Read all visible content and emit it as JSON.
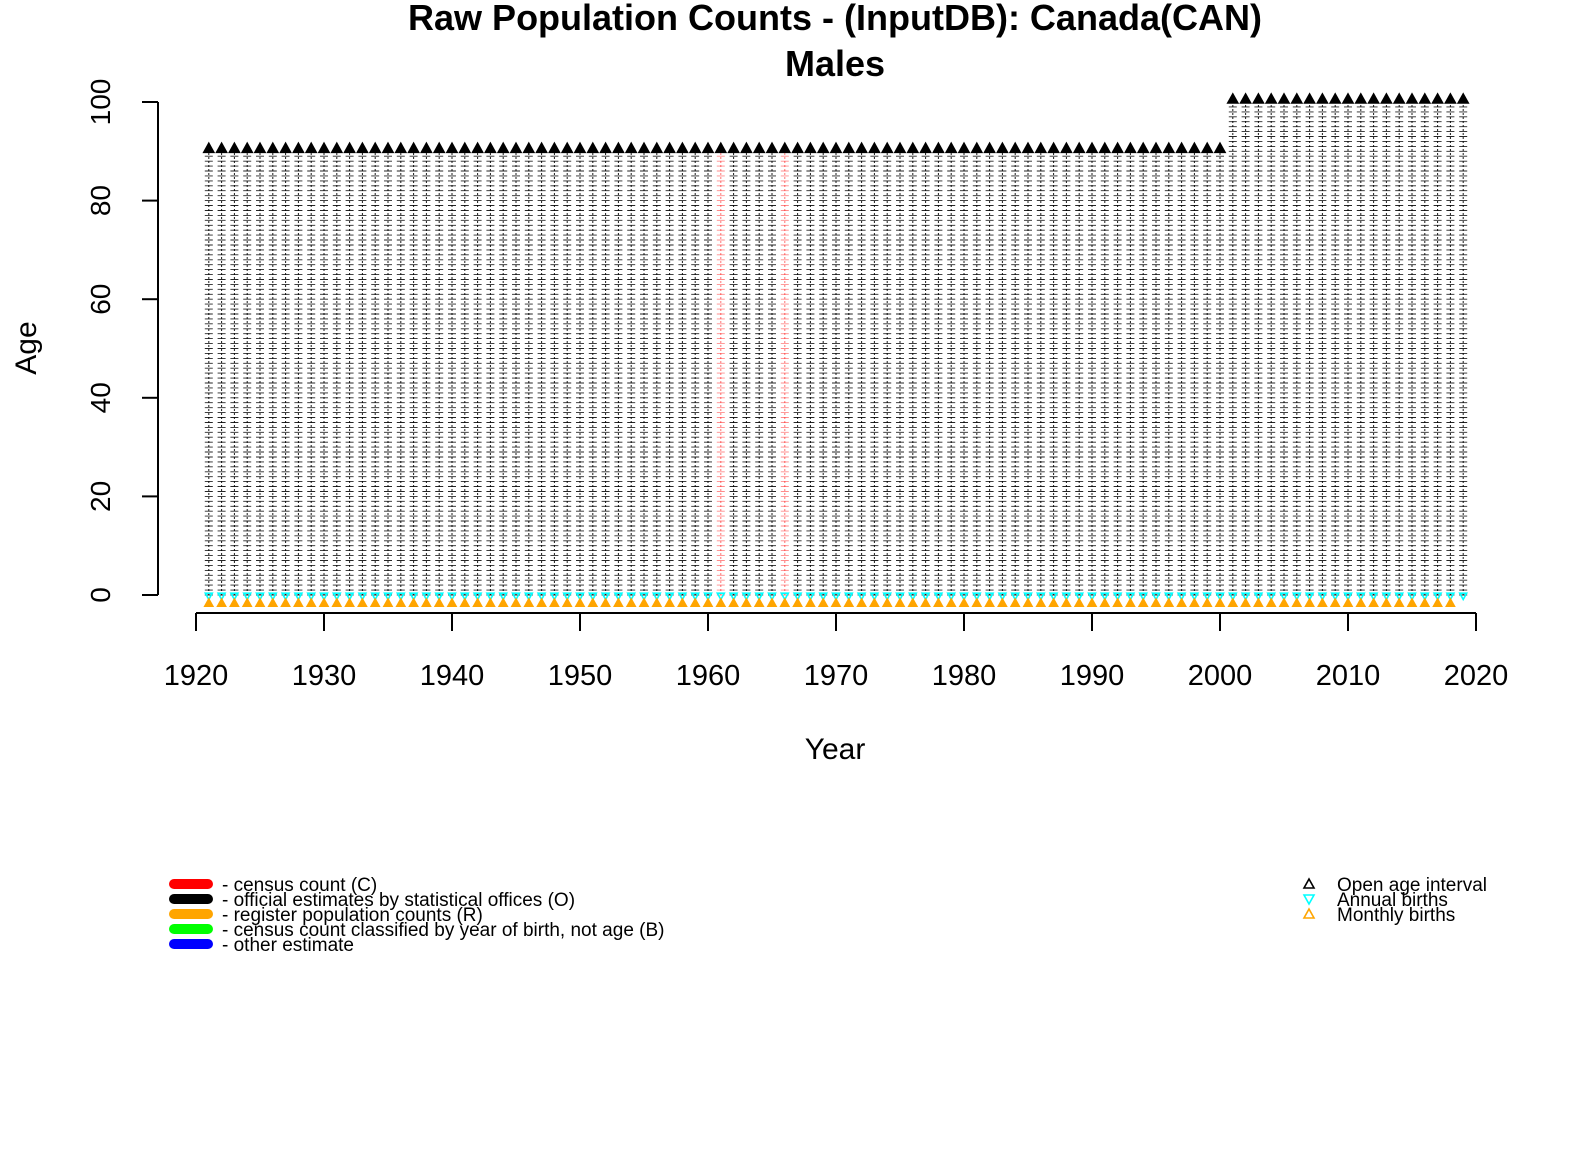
{
  "chart_data": {
    "type": "scatter",
    "title": "Raw Population Counts - (InputDB): Canada(CAN)",
    "subtitle": "Males",
    "xlabel": "Year",
    "ylabel": "Age",
    "xlim": [
      1920,
      2020
    ],
    "ylim": [
      0,
      100
    ],
    "x_ticks": [
      "1920",
      "1930",
      "1940",
      "1950",
      "1960",
      "1970",
      "1980",
      "1990",
      "2000",
      "2010",
      "2020"
    ],
    "y_ticks": [
      "0",
      "20",
      "40",
      "60",
      "80",
      "100"
    ],
    "grid": false,
    "years": {
      "start": 1921,
      "end": 2019,
      "census_years": [
        1961,
        1966
      ],
      "open_age_by_period": [
        {
          "from": 1921,
          "to": 2000,
          "open_age": 90
        },
        {
          "from": 2001,
          "to": 2019,
          "open_age": 100
        }
      ],
      "annual_births_years": [
        1921,
        2019
      ],
      "monthly_births_years": [
        1921,
        2018
      ]
    },
    "colors": {
      "census": "#ff0000",
      "official": "#000000",
      "register": "#ffa500",
      "byb": "#00ff00",
      "other": "#0000ff",
      "open_age": "#000000",
      "annual_births": "#00ffff",
      "monthly_births": "#ffa500",
      "axis": "#000000"
    },
    "legend_left": [
      {
        "color": "#ff0000",
        "label": "- census count (C)"
      },
      {
        "color": "#000000",
        "label": "- official estimates by statistical offices (O)"
      },
      {
        "color": "#ffa500",
        "label": "- register population counts (R)"
      },
      {
        "color": "#00ff00",
        "label": "- census count classified by year of birth, not age (B)"
      },
      {
        "color": "#0000ff",
        "label": "- other estimate"
      }
    ],
    "legend_right": [
      {
        "symbol": "triangle-up",
        "color": "#000000",
        "label": "Open age interval"
      },
      {
        "symbol": "triangle-down",
        "color": "#00ffff",
        "label": "Annual births"
      },
      {
        "symbol": "triangle-up",
        "color": "#ffa500",
        "label": "Monthly births"
      }
    ]
  }
}
